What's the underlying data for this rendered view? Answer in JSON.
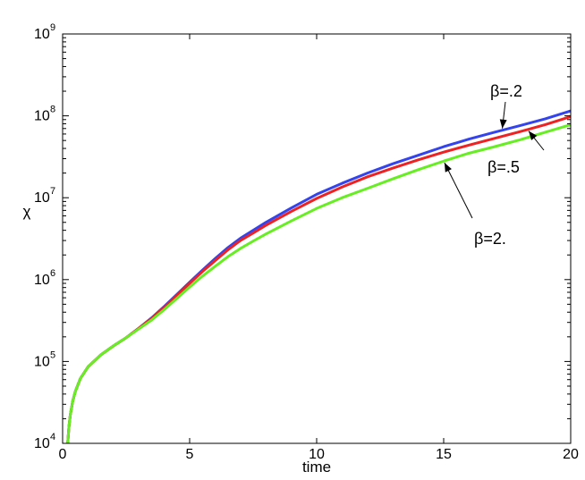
{
  "chart_data": {
    "type": "line",
    "title": "",
    "xlabel": "time",
    "ylabel": "χ",
    "xlim": [
      0,
      20
    ],
    "ylim": [
      10000,
      1000000000
    ],
    "yscale": "log",
    "grid": false,
    "x_ticks": [
      0,
      5,
      10,
      15,
      20
    ],
    "x_tick_labels": [
      "0",
      "5",
      "10",
      "15",
      "20"
    ],
    "y_ticks": [
      {
        "value": 10000,
        "base": "10",
        "exp": "4"
      },
      {
        "value": 100000,
        "base": "10",
        "exp": "5"
      },
      {
        "value": 1000000,
        "base": "10",
        "exp": "6"
      },
      {
        "value": 10000000,
        "base": "10",
        "exp": "7"
      },
      {
        "value": 100000000,
        "base": "10",
        "exp": "8"
      },
      {
        "value": 1000000000,
        "base": "10",
        "exp": "9"
      }
    ],
    "series": [
      {
        "color": "#3344ee",
        "x": [
          0.2,
          0.25,
          0.3,
          0.4,
          0.5,
          0.7,
          1.0,
          1.5,
          2.0,
          2.5,
          3.0,
          3.5,
          4.0,
          4.5,
          5.0,
          5.5,
          6.0,
          6.5,
          7.0,
          7.5,
          8.0,
          9.0,
          10.0,
          11.0,
          12.0,
          13.0,
          14.0,
          15.0,
          16.0,
          17.0,
          18.0,
          19.0,
          20.0
        ],
        "y": [
          10000,
          16000,
          22000,
          33000,
          43000,
          62000,
          86000,
          120000,
          155000,
          195000,
          255000,
          340000,
          470000,
          660000,
          930000,
          1300000,
          1800000,
          2450000,
          3200000,
          4000000,
          5000000,
          7500000,
          11000000,
          15000000,
          20000000,
          26000000,
          33000000,
          42000000,
          52000000,
          63000000,
          76000000,
          92000000,
          115000000
        ]
      },
      {
        "color": "#ee2222",
        "x": [
          0.2,
          0.25,
          0.3,
          0.4,
          0.5,
          0.7,
          1.0,
          1.5,
          2.0,
          2.5,
          3.0,
          3.5,
          4.0,
          4.5,
          5.0,
          5.5,
          6.0,
          6.5,
          7.0,
          7.5,
          8.0,
          9.0,
          10.0,
          11.0,
          12.0,
          13.0,
          14.0,
          15.0,
          16.0,
          17.0,
          18.0,
          19.0,
          20.0
        ],
        "y": [
          10000,
          16000,
          22000,
          33000,
          43000,
          62000,
          86000,
          120000,
          155000,
          195000,
          255000,
          335000,
          460000,
          640000,
          900000,
          1250000,
          1700000,
          2300000,
          3000000,
          3700000,
          4600000,
          6800000,
          9800000,
          13500000,
          18000000,
          23000000,
          29000000,
          36000000,
          44000000,
          53000000,
          64000000,
          78000000,
          98000000
        ]
      },
      {
        "color": "#66ee22",
        "x": [
          0.2,
          0.25,
          0.3,
          0.4,
          0.5,
          0.7,
          1.0,
          1.5,
          2.0,
          2.5,
          3.0,
          3.5,
          4.0,
          4.5,
          5.0,
          5.5,
          6.0,
          6.5,
          7.0,
          7.5,
          8.0,
          9.0,
          10.0,
          11.0,
          12.0,
          13.0,
          14.0,
          15.0,
          16.0,
          17.0,
          18.0,
          19.0,
          20.0
        ],
        "y": [
          10000,
          16000,
          22000,
          33000,
          43000,
          62000,
          86000,
          120000,
          155000,
          195000,
          250000,
          320000,
          430000,
          590000,
          810000,
          1100000,
          1450000,
          1900000,
          2400000,
          2950000,
          3600000,
          5200000,
          7400000,
          10000000,
          13000000,
          17000000,
          22000000,
          28000000,
          35000000,
          42000000,
          51000000,
          63000000,
          78000000
        ]
      }
    ],
    "annotations": [
      {
        "text": "β=.2",
        "series": 0,
        "x": 17.3
      },
      {
        "text": "β=.5",
        "series": 1,
        "x": 18.3
      },
      {
        "text": "β=2.",
        "series": 2,
        "x": 15.0
      }
    ]
  }
}
